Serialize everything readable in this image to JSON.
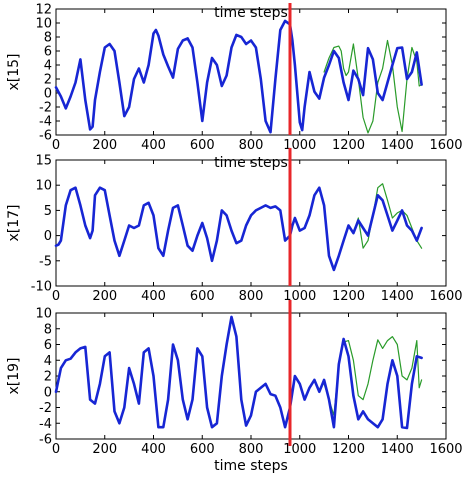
{
  "chart_data": [
    {
      "type": "line",
      "ylabel": "x[15]",
      "xlabel": "time steps",
      "xlim": [
        0,
        1600
      ],
      "ylim": [
        -6,
        12
      ],
      "xticks": [
        "0",
        "200",
        "400",
        "600",
        "800",
        "1000",
        "1200",
        "1400",
        "1600"
      ],
      "yticks": [
        "-6",
        "-4",
        "-2",
        "0",
        "2",
        "4",
        "6",
        "8",
        "10",
        "12"
      ],
      "vline_x": 960,
      "vline_color": "#e8262a",
      "series": [
        {
          "color": "#1726d4",
          "x": [
            0,
            20,
            40,
            60,
            80,
            100,
            120,
            140,
            150,
            160,
            180,
            200,
            220,
            240,
            260,
            280,
            300,
            320,
            340,
            360,
            380,
            400,
            410,
            420,
            440,
            460,
            480,
            500,
            520,
            540,
            560,
            580,
            600,
            620,
            640,
            660,
            680,
            700,
            720,
            740,
            760,
            780,
            800,
            820,
            840,
            860,
            880,
            900,
            920,
            940,
            960,
            970,
            980,
            1000,
            1010,
            1020,
            1040,
            1060,
            1080,
            1100,
            1120,
            1140,
            1160,
            1180,
            1200,
            1220,
            1240,
            1260,
            1280,
            1300,
            1320,
            1340,
            1360,
            1380,
            1400,
            1420,
            1440,
            1460,
            1480,
            1500
          ],
          "y": [
            0.8,
            -0.5,
            -2.2,
            -0.5,
            1.5,
            4.8,
            -1,
            -5.2,
            -4.8,
            -1,
            3,
            6.5,
            7,
            6,
            1.5,
            -3.3,
            -2,
            2,
            3.5,
            1.5,
            4,
            8.5,
            9,
            8.2,
            5.5,
            3.8,
            2.2,
            6.3,
            7.5,
            7.8,
            6.5,
            1.5,
            -4,
            1.5,
            5,
            4,
            1,
            2.5,
            6.5,
            8.3,
            8,
            7,
            7.5,
            6.5,
            2,
            -4,
            -5.6,
            2,
            9,
            10.3,
            9.8,
            7.5,
            4,
            -4.2,
            -5.3,
            -2,
            3,
            0.2,
            -0.8,
            2.2,
            4,
            6,
            5,
            1.5,
            -1,
            3.2,
            2,
            -0.3,
            6.4,
            4.8,
            0,
            -1,
            1.5,
            4,
            6.4,
            6.5,
            2,
            3,
            5.8,
            1.2
          ]
        },
        {
          "color": "#2a9b2a",
          "x": [
            1100,
            1120,
            1140,
            1160,
            1170,
            1180,
            1190,
            1200,
            1220,
            1240,
            1260,
            1280,
            1300,
            1320,
            1340,
            1360,
            1380,
            1400,
            1420,
            1440,
            1460,
            1480,
            1490,
            1500
          ],
          "y": [
            3,
            5,
            6.5,
            6.7,
            6,
            3.5,
            2.5,
            3,
            7,
            2,
            -3.5,
            -5.7,
            -4,
            1.5,
            3.5,
            7.5,
            4,
            -2,
            -5.5,
            2,
            6.5,
            4.5,
            1,
            1.2
          ]
        }
      ]
    },
    {
      "type": "line",
      "ylabel": "x[17]",
      "xlabel": "time steps",
      "xlim": [
        0,
        1600
      ],
      "ylim": [
        -10,
        15
      ],
      "xticks": [
        "0",
        "200",
        "400",
        "600",
        "800",
        "1000",
        "1200",
        "1400",
        "1600"
      ],
      "yticks": [
        "-10",
        "-5",
        "0",
        "5",
        "10",
        "15"
      ],
      "vline_x": 960,
      "vline_color": "#e8262a",
      "series": [
        {
          "color": "#1726d4",
          "x": [
            0,
            10,
            20,
            40,
            60,
            80,
            100,
            120,
            140,
            150,
            160,
            180,
            200,
            220,
            240,
            260,
            280,
            300,
            320,
            340,
            360,
            380,
            400,
            420,
            440,
            460,
            480,
            500,
            520,
            540,
            560,
            580,
            600,
            620,
            640,
            660,
            680,
            700,
            720,
            740,
            760,
            780,
            800,
            820,
            840,
            860,
            880,
            900,
            920,
            940,
            950,
            960,
            970,
            980,
            1000,
            1020,
            1040,
            1060,
            1080,
            1100,
            1120,
            1140,
            1160,
            1180,
            1200,
            1220,
            1240,
            1260,
            1280,
            1300,
            1320,
            1340,
            1360,
            1380,
            1400,
            1420,
            1440,
            1460,
            1480,
            1500
          ],
          "y": [
            -2,
            -1.8,
            -1,
            6,
            9,
            9.5,
            6,
            2,
            -0.5,
            1,
            8,
            9.5,
            9,
            4,
            -1,
            -4,
            -1,
            2,
            1.5,
            2,
            6,
            6.5,
            4,
            -2.5,
            -4,
            1,
            5.5,
            6,
            2,
            -2,
            -3,
            0,
            2.5,
            -0.5,
            -5,
            -1,
            5,
            4,
            1,
            -1.5,
            -1,
            2,
            4,
            5,
            5.5,
            6,
            5.5,
            5.8,
            5,
            -1,
            -0.5,
            0,
            2,
            3.5,
            1,
            1.5,
            4,
            8,
            9.5,
            6,
            -4,
            -6.8,
            -4,
            -1,
            2,
            0.5,
            3,
            1.5,
            0,
            4,
            8,
            7,
            4,
            1,
            3,
            5,
            2,
            1,
            -1,
            1.5
          ]
        },
        {
          "color": "#2a9b2a",
          "x": [
            1180,
            1200,
            1220,
            1240,
            1260,
            1280,
            1300,
            1320,
            1340,
            1360,
            1380,
            1400,
            1420,
            1440,
            1460,
            1480,
            1500
          ],
          "y": [
            -1,
            2,
            0.5,
            3.5,
            -2.5,
            -1,
            4,
            9.5,
            10.3,
            7,
            3.5,
            4.5,
            5,
            4,
            1.5,
            -1,
            -2.5
          ]
        }
      ]
    },
    {
      "type": "line",
      "ylabel": "x[19]",
      "xlabel": "time steps",
      "xlim": [
        0,
        1600
      ],
      "ylim": [
        -6,
        10
      ],
      "xticks": [
        "0",
        "200",
        "400",
        "600",
        "800",
        "1000",
        "1200",
        "1400",
        "1600"
      ],
      "yticks": [
        "-6",
        "-4",
        "-2",
        "0",
        "2",
        "4",
        "6",
        "8",
        "10"
      ],
      "vline_x": 960,
      "vline_color": "#e8262a",
      "series": [
        {
          "color": "#1726d4",
          "x": [
            0,
            20,
            40,
            60,
            80,
            100,
            120,
            140,
            160,
            180,
            200,
            220,
            240,
            260,
            280,
            300,
            320,
            340,
            360,
            380,
            400,
            420,
            440,
            460,
            480,
            500,
            520,
            540,
            560,
            580,
            600,
            620,
            640,
            660,
            680,
            700,
            720,
            740,
            760,
            780,
            800,
            820,
            840,
            860,
            880,
            900,
            920,
            940,
            960,
            980,
            1000,
            1020,
            1040,
            1060,
            1080,
            1100,
            1120,
            1140,
            1160,
            1180,
            1200,
            1220,
            1240,
            1260,
            1280,
            1300,
            1320,
            1340,
            1360,
            1380,
            1400,
            1420,
            1440,
            1460,
            1480,
            1500
          ],
          "y": [
            0,
            3,
            4,
            4.2,
            5,
            5.5,
            5.7,
            -1,
            -1.5,
            1,
            4.5,
            5,
            -2.5,
            -4,
            -2,
            3,
            1,
            -1.5,
            5,
            5.5,
            2,
            -4.5,
            -4.5,
            -1,
            6,
            4,
            -1,
            -3.5,
            -1,
            5.5,
            4.5,
            -2,
            -4.5,
            -4,
            2,
            6,
            9.5,
            7,
            -1,
            -4.3,
            -3,
            0,
            0.5,
            1,
            -0.3,
            -0.5,
            -2,
            -4.5,
            -2,
            2,
            1,
            -1,
            0.5,
            1.5,
            0,
            1.5,
            -1,
            -4.5,
            3.5,
            6.7,
            4.5,
            -0.5,
            -3.5,
            -2.5,
            -3.5,
            -4,
            -4.5,
            -3.5,
            1,
            4,
            2,
            -4.5,
            -4.6,
            1,
            4.5,
            4.3
          ]
        },
        {
          "color": "#2a9b2a",
          "x": [
            1100,
            1120,
            1140,
            1160,
            1180,
            1200,
            1220,
            1240,
            1260,
            1280,
            1300,
            1320,
            1340,
            1360,
            1380,
            1400,
            1420,
            1440,
            1460,
            1480,
            1490,
            1500
          ],
          "y": [
            1,
            -1,
            -3,
            3.5,
            6.3,
            6.5,
            4,
            -0.5,
            -1,
            1,
            4,
            6.6,
            5.5,
            6.5,
            7,
            6,
            2,
            1.5,
            3,
            6.5,
            0.5,
            1.5
          ]
        }
      ]
    }
  ]
}
